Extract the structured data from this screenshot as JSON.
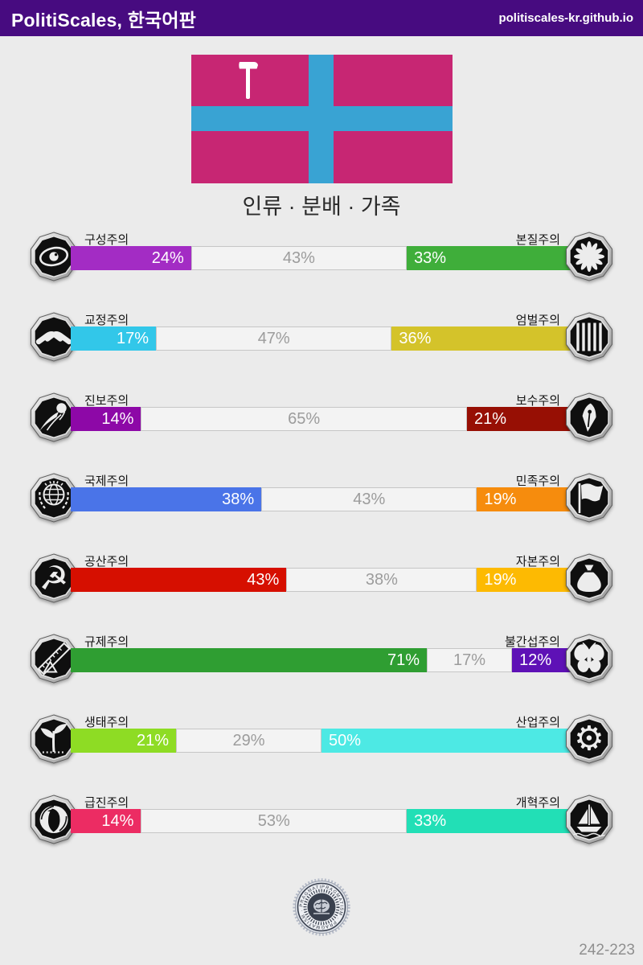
{
  "theme": {
    "header_bg": "#470b80",
    "page_bg": "#ebebeb",
    "neutral_segment_bg": "#f3f3f3",
    "neutral_text": "#9c9c9c"
  },
  "header": {
    "title": "PolitiScales, 한국어판",
    "site_link": "politiscales-kr.github.io"
  },
  "result": {
    "flag": {
      "symbol": "hammer-icon",
      "colors": {
        "field": "#c72673",
        "cross": "#39a3d3",
        "hammer": "#ffffff"
      }
    },
    "subtitle": "인류 · 분배 · 가족"
  },
  "axes": [
    {
      "left": {
        "label": "구성주의",
        "value": "24%",
        "pct": 24,
        "color": "#a32cc4",
        "icon": "eye-icon"
      },
      "mid": {
        "value": "43%",
        "pct": 43
      },
      "right": {
        "label": "본질주의",
        "value": "33%",
        "pct": 33,
        "color": "#3fae3a",
        "icon": "chrysanthemum-icon"
      }
    },
    {
      "left": {
        "label": "교정주의",
        "value": "17%",
        "pct": 17,
        "color": "#32c7e9",
        "icon": "handshake-icon"
      },
      "mid": {
        "value": "47%",
        "pct": 47
      },
      "right": {
        "label": "엄벌주의",
        "value": "36%",
        "pct": 36,
        "color": "#d4c32a",
        "icon": "prison-bars-icon"
      }
    },
    {
      "left": {
        "label": "진보주의",
        "value": "14%",
        "pct": 14,
        "color": "#8d08a7",
        "icon": "comet-icon"
      },
      "mid": {
        "value": "65%",
        "pct": 65
      },
      "right": {
        "label": "보수주의",
        "value": "21%",
        "pct": 21,
        "color": "#970f04",
        "icon": "pen-nib-icon"
      }
    },
    {
      "left": {
        "label": "국제주의",
        "value": "38%",
        "pct": 38,
        "color": "#4a74e8",
        "icon": "globe-laurel-icon"
      },
      "mid": {
        "value": "43%",
        "pct": 43
      },
      "right": {
        "label": "민족주의",
        "value": "19%",
        "pct": 19,
        "color": "#f68c0d",
        "icon": "waving-flag-icon"
      }
    },
    {
      "left": {
        "label": "공산주의",
        "value": "43%",
        "pct": 43,
        "color": "#d60f00",
        "icon": "hammer-and-sickle-icon"
      },
      "mid": {
        "value": "38%",
        "pct": 38
      },
      "right": {
        "label": "자본주의",
        "value": "19%",
        "pct": 19,
        "color": "#fdba02",
        "icon": "money-bag-icon"
      }
    },
    {
      "left": {
        "label": "규제주의",
        "value": "71%",
        "pct": 71,
        "color": "#2f9e32",
        "icon": "ruler-scales-icon"
      },
      "mid": {
        "value": "17%",
        "pct": 17
      },
      "right": {
        "label": "불간섭주의",
        "value": "12%",
        "pct": 12,
        "color": "#5e11b6",
        "icon": "butterfly-icon"
      }
    },
    {
      "left": {
        "label": "생태주의",
        "value": "21%",
        "pct": 21,
        "color": "#8edc24",
        "icon": "tree-rays-icon"
      },
      "mid": {
        "value": "29%",
        "pct": 29
      },
      "right": {
        "label": "산업주의",
        "value": "50%",
        "pct": 50,
        "color": "#4de9e4",
        "icon": "gear-icon"
      }
    },
    {
      "left": {
        "label": "급진주의",
        "value": "14%",
        "pct": 14,
        "color": "#ec2c63",
        "icon": "raven-swirl-icon"
      },
      "mid": {
        "value": "53%",
        "pct": 53
      },
      "right": {
        "label": "개혁주의",
        "value": "33%",
        "pct": 33,
        "color": "#22dfb6",
        "icon": "sailboat-icon"
      }
    }
  ],
  "footer": {
    "seal_icon": "pragmatism-seal",
    "seal_text": "PRAGMATISM · PRAGMATISM · PRAGMATISM ·",
    "code": "242-223"
  }
}
